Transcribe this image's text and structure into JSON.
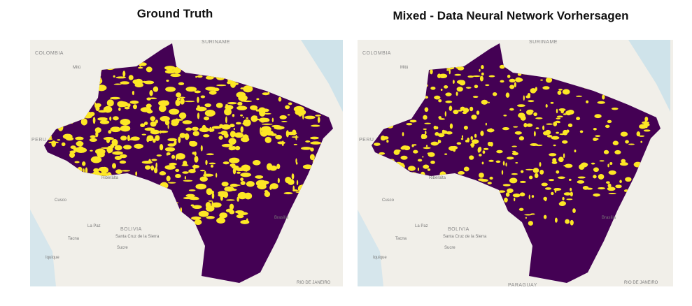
{
  "panels": [
    {
      "title": "Ground Truth",
      "labels": [
        "COLOMBIA",
        "SURINAME",
        "Mitú",
        "PERU",
        "Riberalta",
        "Cusco",
        "La Paz",
        "BOLIVIA",
        "Santa Cruz de la Sierra",
        "Sucre",
        "Tacna",
        "Iquique",
        "Brasília",
        "RIO DE JANEIRO"
      ]
    },
    {
      "title": "Mixed - Data Neural Network Vorhersagen",
      "labels": [
        "COLOMBIA",
        "SURINAME",
        "Mitú",
        "PERU",
        "Riberalta",
        "Cusco",
        "La Paz",
        "BOLIVIA",
        "Santa Cruz de la Sierra",
        "Sucre",
        "Tacna",
        "Iquique",
        "Brasília",
        "RIO DE JANEIRO",
        "PARAGUAY"
      ]
    }
  ]
}
